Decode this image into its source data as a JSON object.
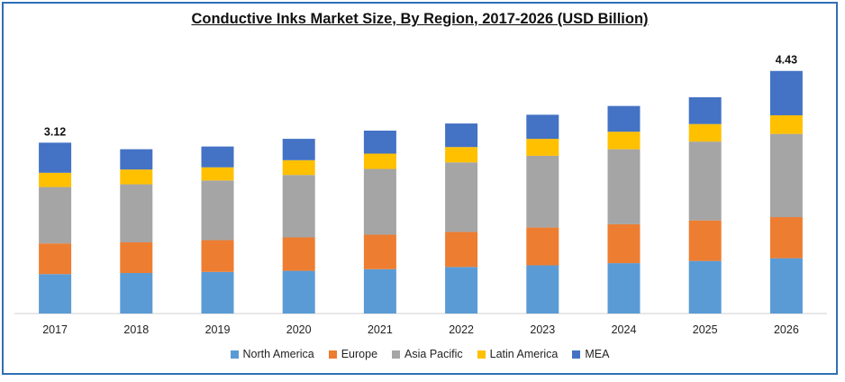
{
  "chart_data": {
    "type": "bar",
    "stacked": true,
    "title": "Conductive Inks Market Size, By Region, 2017-2026 (USD Billion)",
    "xlabel": "",
    "ylabel": "",
    "categories": [
      "2017",
      "2018",
      "2019",
      "2020",
      "2021",
      "2022",
      "2023",
      "2024",
      "2025",
      "2026"
    ],
    "series": [
      {
        "name": "North America",
        "color": "#5b9bd5",
        "values": [
          0.72,
          0.74,
          0.76,
          0.78,
          0.81,
          0.85,
          0.88,
          0.92,
          0.96,
          1.01
        ]
      },
      {
        "name": "Europe",
        "color": "#ed7d31",
        "values": [
          0.56,
          0.56,
          0.58,
          0.61,
          0.63,
          0.64,
          0.69,
          0.71,
          0.74,
          0.75
        ]
      },
      {
        "name": "Asia Pacific",
        "color": "#a5a5a5",
        "values": [
          1.03,
          1.06,
          1.09,
          1.14,
          1.2,
          1.27,
          1.31,
          1.37,
          1.44,
          1.52
        ]
      },
      {
        "name": "Latin America",
        "color": "#ffc000",
        "values": [
          0.26,
          0.27,
          0.24,
          0.27,
          0.28,
          0.28,
          0.31,
          0.32,
          0.32,
          0.34
        ]
      },
      {
        "name": "MEA",
        "color": "#4472c4",
        "values": [
          0.55,
          0.37,
          0.38,
          0.39,
          0.42,
          0.43,
          0.44,
          0.47,
          0.49,
          0.81
        ]
      }
    ],
    "data_labels": [
      {
        "category": "2017",
        "text": "3.12"
      },
      {
        "category": "2026",
        "text": "4.43"
      }
    ],
    "ylim": [
      0,
      5.1
    ],
    "grid": false,
    "legend_position": "bottom"
  }
}
